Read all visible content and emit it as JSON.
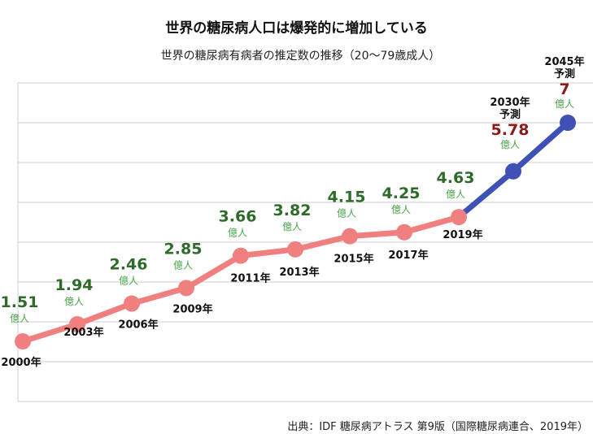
{
  "chart_data": {
    "type": "line",
    "title": "世界の糖尿病人口は爆発的に増加している",
    "subtitle": "世界の糖尿病有病者の推定数の推移（20〜79歳成人）",
    "categories": [
      "2000年",
      "2003年",
      "2006年",
      "2009年",
      "2011年",
      "2013年",
      "2015年",
      "2017年",
      "2019年",
      "2030年",
      "2045年"
    ],
    "values": [
      1.51,
      1.94,
      2.46,
      2.85,
      3.66,
      3.82,
      4.15,
      4.25,
      4.63,
      5.78,
      7
    ],
    "value_labels": [
      "1.51",
      "1.94",
      "2.46",
      "2.85",
      "3.66",
      "3.82",
      "4.15",
      "4.25",
      "4.63",
      "5.78",
      "7"
    ],
    "unit": "億人",
    "forecast_label": "予測",
    "forecast_from_index": 8,
    "ylim": [
      0,
      8
    ],
    "grid": true,
    "colors": {
      "actual": "#f08080",
      "forecast": "#3f51b5",
      "value_text": "#2e6b2a",
      "forecast_value_text": "#8b1a1a",
      "unit_text": "#4aa34a",
      "grid": "#cccccc"
    }
  },
  "source": "出典：IDF 糖尿病アトラス 第9版（国際糖尿病連合、2019年）"
}
